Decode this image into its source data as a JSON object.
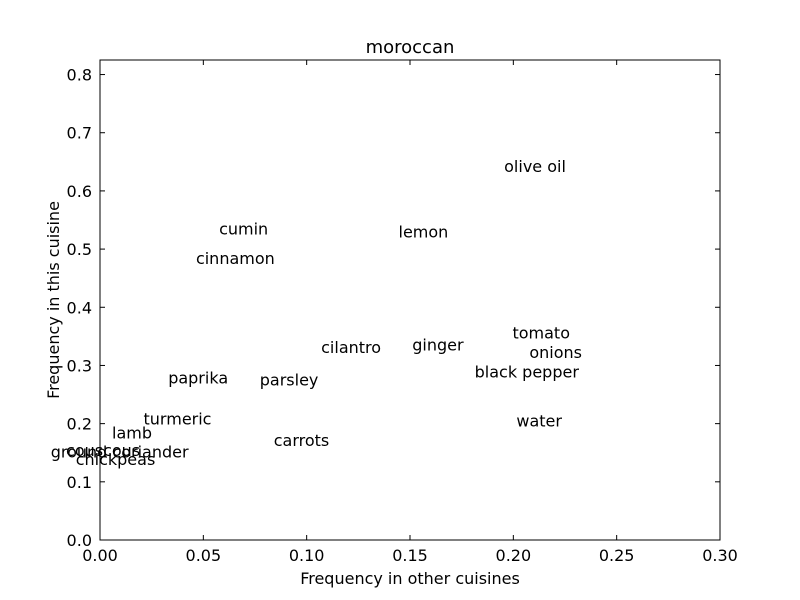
{
  "chart_data": {
    "type": "scatter",
    "title": "moroccan",
    "xlabel": "Frequency in other cuisines",
    "ylabel": "Frequency in this cuisine",
    "xlim": [
      0.0,
      0.3
    ],
    "ylim": [
      0.0,
      0.825
    ],
    "xticks": [
      0.0,
      0.05,
      0.1,
      0.15,
      0.2,
      0.25,
      0.3
    ],
    "xtick_labels": [
      "0.00",
      "0.05",
      "0.10",
      "0.15",
      "0.20",
      "0.25",
      "0.30"
    ],
    "yticks": [
      0.0,
      0.1,
      0.2,
      0.3,
      0.4,
      0.5,
      0.6,
      0.7,
      0.8
    ],
    "ytick_labels": [
      "0.0",
      "0.1",
      "0.2",
      "0.3",
      "0.4",
      "0.5",
      "0.6",
      "0.7",
      "0.8"
    ],
    "grid": false,
    "points": [
      {
        "label": "olive oil",
        "x": 0.2105,
        "y": 0.643
      },
      {
        "label": "cumin",
        "x": 0.0695,
        "y": 0.535
      },
      {
        "label": "lemon",
        "x": 0.1565,
        "y": 0.53
      },
      {
        "label": "cinnamon",
        "x": 0.0655,
        "y": 0.485
      },
      {
        "label": "tomato",
        "x": 0.2135,
        "y": 0.357
      },
      {
        "label": "onions",
        "x": 0.2205,
        "y": 0.323
      },
      {
        "label": "ginger",
        "x": 0.1635,
        "y": 0.336
      },
      {
        "label": "cilantro",
        "x": 0.1215,
        "y": 0.332
      },
      {
        "label": "black pepper",
        "x": 0.2065,
        "y": 0.29
      },
      {
        "label": "paprika",
        "x": 0.0475,
        "y": 0.279
      },
      {
        "label": "parsley",
        "x": 0.0915,
        "y": 0.276
      },
      {
        "label": "water",
        "x": 0.2125,
        "y": 0.205
      },
      {
        "label": "turmeric",
        "x": 0.0375,
        "y": 0.209
      },
      {
        "label": "lamb",
        "x": 0.0155,
        "y": 0.185
      },
      {
        "label": "carrots",
        "x": 0.0975,
        "y": 0.172
      },
      {
        "label": "couscous",
        "x": 0.0015,
        "y": 0.155
      },
      {
        "label": "ground coriander",
        "x": 0.0095,
        "y": 0.152
      },
      {
        "label": "chickpeas",
        "x": 0.0075,
        "y": 0.139
      }
    ]
  }
}
